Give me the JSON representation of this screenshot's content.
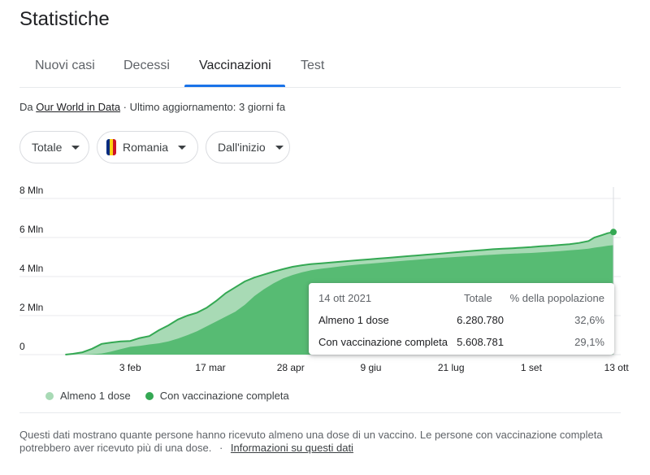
{
  "page": {
    "title": "Statistiche"
  },
  "tabs": [
    {
      "label": "Nuovi casi"
    },
    {
      "label": "Decessi"
    },
    {
      "label": "Vaccinazioni"
    },
    {
      "label": "Test"
    }
  ],
  "source": {
    "prefix": "Da",
    "link": "Our World in Data",
    "updated": "· Ultimo aggiornamento: 3 giorni fa"
  },
  "filters": {
    "scope": "Totale",
    "country": "Romania",
    "range": "Dall'inizio",
    "flag_colors": [
      "#002B7F",
      "#FCD116",
      "#CE1126"
    ]
  },
  "chart_data": {
    "type": "area",
    "ylim": [
      0,
      8
    ],
    "yticks": [
      "0",
      "2 Mln",
      "4 Mln",
      "6 Mln",
      "8 Mln"
    ],
    "xticks": [
      {
        "label": "3 feb",
        "x": 35
      },
      {
        "label": "17 mar",
        "x": 77
      },
      {
        "label": "28 apr",
        "x": 119
      },
      {
        "label": "9 giu",
        "x": 161
      },
      {
        "label": "21 lug",
        "x": 203
      },
      {
        "label": "1 set",
        "x": 245
      },
      {
        "label": "13 ott",
        "x": 287
      }
    ],
    "x": [
      1,
      5,
      10,
      15,
      20,
      25,
      30,
      35,
      40,
      45,
      50,
      55,
      60,
      65,
      70,
      75,
      80,
      85,
      90,
      95,
      100,
      105,
      110,
      115,
      120,
      125,
      130,
      135,
      140,
      145,
      150,
      155,
      160,
      165,
      170,
      175,
      180,
      185,
      190,
      195,
      200,
      205,
      210,
      215,
      220,
      225,
      230,
      235,
      240,
      245,
      250,
      255,
      260,
      265,
      270,
      275,
      278,
      282,
      285,
      288
    ],
    "series": [
      {
        "name": "Almeno 1 dose",
        "color": "#a8dab5",
        "values": [
          0.0,
          0.04,
          0.12,
          0.3,
          0.55,
          0.62,
          0.68,
          0.7,
          0.85,
          0.95,
          1.25,
          1.5,
          1.8,
          2.0,
          2.15,
          2.4,
          2.75,
          3.15,
          3.45,
          3.75,
          3.95,
          4.1,
          4.25,
          4.38,
          4.5,
          4.58,
          4.64,
          4.68,
          4.72,
          4.76,
          4.8,
          4.84,
          4.88,
          4.92,
          4.96,
          5.0,
          5.04,
          5.08,
          5.12,
          5.16,
          5.2,
          5.24,
          5.28,
          5.32,
          5.36,
          5.4,
          5.43,
          5.45,
          5.48,
          5.51,
          5.55,
          5.58,
          5.62,
          5.66,
          5.72,
          5.82,
          6.0,
          6.12,
          6.22,
          6.28
        ]
      },
      {
        "name": "Con vaccinazione completa",
        "color": "#57bb73",
        "values": [
          0.0,
          0.0,
          0.0,
          0.02,
          0.06,
          0.16,
          0.28,
          0.4,
          0.45,
          0.52,
          0.58,
          0.68,
          0.82,
          1.0,
          1.2,
          1.45,
          1.7,
          1.95,
          2.2,
          2.55,
          3.0,
          3.35,
          3.65,
          3.9,
          4.08,
          4.22,
          4.33,
          4.4,
          4.46,
          4.52,
          4.57,
          4.62,
          4.66,
          4.7,
          4.74,
          4.78,
          4.82,
          4.86,
          4.9,
          4.94,
          4.97,
          5.0,
          5.03,
          5.06,
          5.09,
          5.12,
          5.15,
          5.17,
          5.19,
          5.21,
          5.24,
          5.27,
          5.3,
          5.34,
          5.38,
          5.43,
          5.48,
          5.53,
          5.58,
          5.61
        ]
      }
    ],
    "highlight_series_color": "#34a853"
  },
  "tooltip": {
    "date": "14 ott 2021",
    "col_total": "Totale",
    "col_pct": "% della popolazione",
    "rows": [
      {
        "label": "Almeno 1 dose",
        "total": "6.280.780",
        "pct": "32,6%"
      },
      {
        "label": "Con vaccinazione completa",
        "total": "5.608.781",
        "pct": "29,1%"
      }
    ]
  },
  "legend": [
    {
      "label": "Almeno 1 dose",
      "color": "#a8dab5"
    },
    {
      "label": "Con vaccinazione completa",
      "color": "#34a853"
    }
  ],
  "footer": {
    "text": "Questi dati mostrano quante persone hanno ricevuto almeno una dose di un vaccino. Le persone con vaccinazione completa potrebbero aver ricevuto più di una dose.",
    "separator": "·",
    "link": "Informazioni su questi dati"
  }
}
